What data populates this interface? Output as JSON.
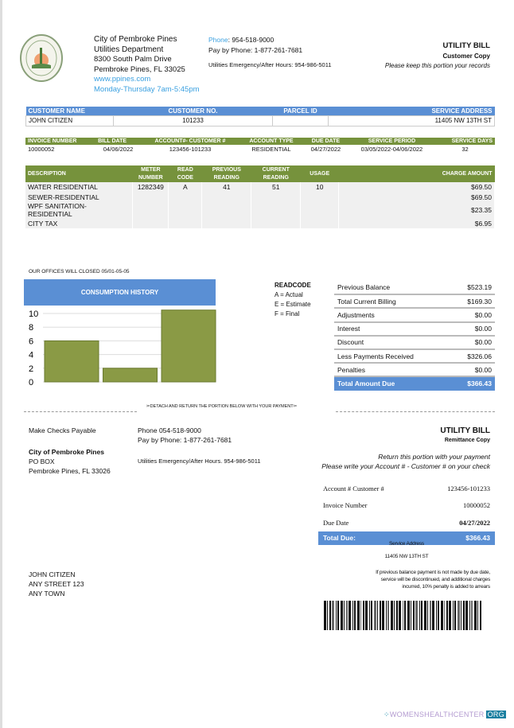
{
  "org": {
    "name": "City of Pembroke Pines",
    "dept": "Utilities Department",
    "street": "8300 South Palm Drive",
    "city": "Pembroke Pines, FL 33025",
    "website": "www.ppines.com",
    "hours": "Monday-Thursday 7am-5:45pm"
  },
  "contact": {
    "phone_label": "Phone",
    "phone": ": 954-518-9000",
    "pay_phone": "Pay by Phone: 1-877-261-7681",
    "emergency": "Utilities Emergency/After Hours: 954-986-5011"
  },
  "bill": {
    "title": "UTILITY BILL",
    "copy": "Customer Copy",
    "note": "Please keep this portion your records"
  },
  "customer_table": {
    "headers": [
      "CUSTOMER NAME",
      "CUSTOMER NO.",
      "PARCEL ID",
      "SERVICE ADDRESS"
    ],
    "row": [
      "JOHN CITIZEN",
      "101233",
      "",
      "11405 NW 13TH ST"
    ]
  },
  "invoice_table": {
    "headers": [
      "INVOICE NUMBER",
      "BILL DATE",
      "ACCOUNT#- CUSTOMER #",
      "ACCOUNT TYPE",
      "DUE DATE",
      "SERVICE PERIOD",
      "SERVICE DAYS"
    ],
    "row": [
      "10000052",
      "04/06/2022",
      "123456-101233",
      "RESIDENTIAL",
      "04/27/2022",
      "03/05/2022-04/06/2022",
      "32"
    ]
  },
  "charges_table": {
    "headers": [
      "DESCRIPTION",
      "METER NUMBER",
      "READ CODE",
      "PREVIOUS READING",
      "CURRENT READING",
      "USAGE",
      "CHARGE AMOUNT"
    ],
    "rows": [
      [
        "WATER RESIDENTIAL",
        "1282349",
        "A",
        "41",
        "51",
        "10",
        "$69.50"
      ],
      [
        "SEWER-RESIDENTIAL",
        "",
        "",
        "",
        "",
        "",
        "$69.50"
      ],
      [
        "WPF SANITATION-RESIDENTIAL",
        "",
        "",
        "",
        "",
        "",
        "$23.35"
      ],
      [
        "CITY TAX",
        "",
        "",
        "",
        "",
        "",
        "$6.95"
      ]
    ]
  },
  "offices_note": "OUR OFFICES WILL CLOSED 05/01-05-05",
  "chart_data": {
    "type": "bar",
    "title": "CONSUMPTION HISTORY",
    "values": [
      6,
      2,
      10.5
    ],
    "ylim": [
      0,
      10
    ],
    "yticks": [
      "10",
      "8",
      "6",
      "4",
      "2",
      "0"
    ],
    "bar_color": "#8a9a45",
    "grid": true
  },
  "readcode": {
    "title": "READCODE",
    "items": [
      "A = Actual",
      "E = Estimate",
      "F = Final"
    ]
  },
  "summary": [
    [
      "Previous Balance",
      "$523.19"
    ],
    [
      "Total Current Billing",
      "$169.30"
    ],
    [
      "Adjustments",
      "$0.00"
    ],
    [
      "Interest",
      "$0.00"
    ],
    [
      "Discount",
      "$0.00"
    ],
    [
      "Less Payments Received",
      "$326.06"
    ],
    [
      "Penalties",
      "$0.00"
    ],
    [
      "Total Amount Due",
      "$366.43"
    ]
  ],
  "detach": "DETACH AND RETURN THE PORTION BELOW WITH YOUR PAYMENT",
  "remit": {
    "make_checks": "Make Checks Payable",
    "payee": "City of Pembroke Pines",
    "po": "PO BOX",
    "city": "Pembroke Pines, FL 33026",
    "phone": "Phone 054-518-9000",
    "pay_phone": "Pay by Phone: 1-877-261-7681",
    "emergency": "Utilities Emergency/After Hours. 954-986-5011",
    "title": "UTILITY BILL",
    "copy": "Remittance Copy",
    "return_note": "Return this portion with your payment",
    "write_note": "Please write your Account # - Customer # on your check",
    "rows": [
      [
        "Account # Customer #",
        "123456-101233"
      ],
      [
        "Invoice Number",
        "10000052"
      ],
      [
        "Due Date",
        "04/27/2022"
      ],
      [
        "Total Due:",
        "$366.43"
      ]
    ],
    "service_address_label": "Service Address",
    "service_address": "11405 NW 13TH ST",
    "penalty_note": [
      "If previous balance payment is not made by due date,",
      "service will be discontinued, and additional charges",
      "incurred, 10% penalty is added to arrears"
    ],
    "recipient": [
      "JOHN CITIZEN",
      "ANY STREET 123",
      "ANY TOWN"
    ]
  },
  "watermark": {
    "text": "WOMENSHEALTHCENTER",
    "tld": "ORG"
  },
  "colors": {
    "blue": "#5a8fd4",
    "olive": "#76923c",
    "link": "#3aa0e0"
  }
}
